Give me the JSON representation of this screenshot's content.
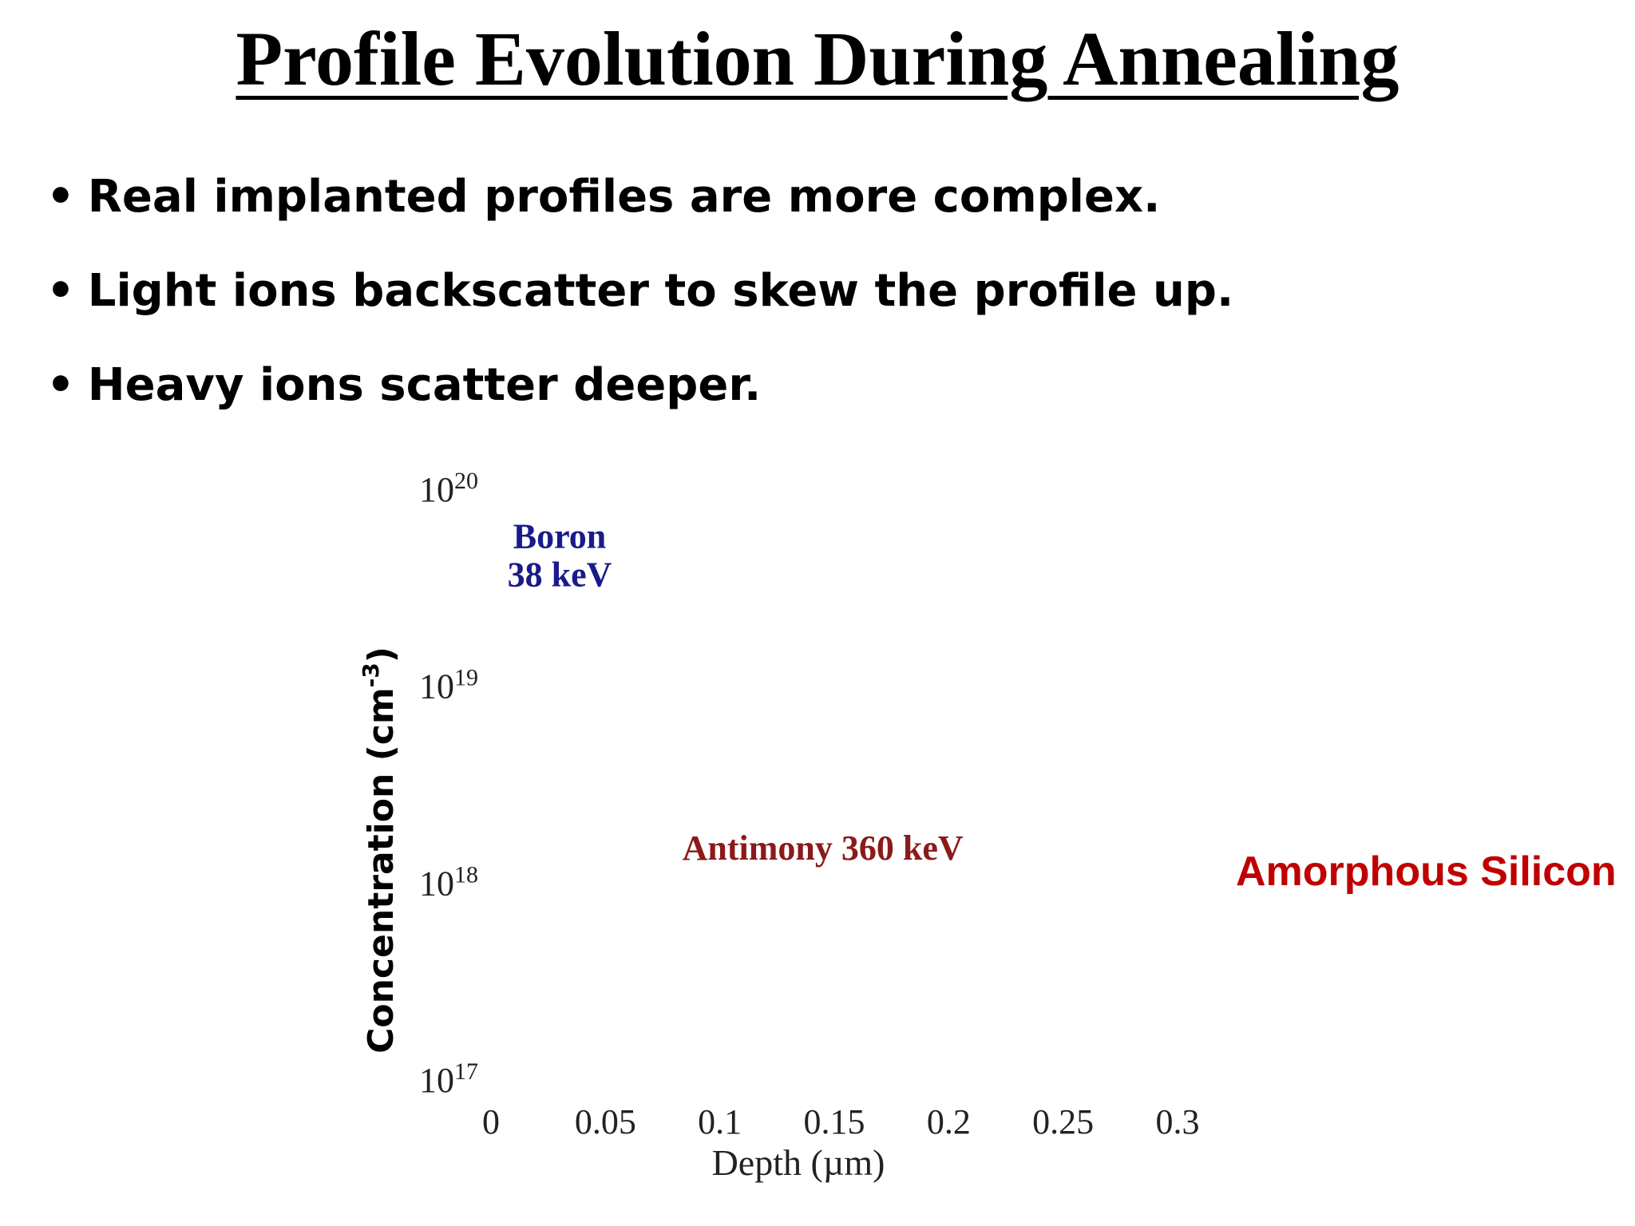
{
  "slide": {
    "title": "Profile Evolution During Annealing",
    "bullets": [
      "Real implanted profiles are more complex.",
      "Light ions backscatter to skew the profile up.",
      "Heavy ions scatter deeper."
    ]
  },
  "chart_data": {
    "type": "line",
    "ylabel": "Concentration (cm",
    "ylabel_sup": "-3",
    "ylabel_suffix": ")",
    "xlabel": "Depth (µm)",
    "xlim": [
      0,
      0.3
    ],
    "x_ticks": [
      "0",
      "0.05",
      "0.1",
      "0.15",
      "0.2",
      "0.25",
      "0.3"
    ],
    "x_tick_values": [
      0,
      0.05,
      0.1,
      0.15,
      0.2,
      0.25,
      0.3
    ],
    "y_scale": "log",
    "ylim": [
      1e+17,
      1e+20
    ],
    "y_ticks": [
      {
        "base": "10",
        "exp": "20",
        "value": 1e+20
      },
      {
        "base": "10",
        "exp": "19",
        "value": 1e+19
      },
      {
        "base": "10",
        "exp": "18",
        "value": 1e+18
      },
      {
        "base": "10",
        "exp": "17",
        "value": 1e+17
      }
    ],
    "series_labels": [
      {
        "lines": [
          "Boron",
          "38 keV"
        ],
        "color": "#1a1a8c",
        "x": 0.03,
        "y": 5e+19
      },
      {
        "lines": [
          "Antimony  360 keV"
        ],
        "color": "#8b1a1a",
        "x": 0.145,
        "y": 1.3e+18
      }
    ],
    "annotation": {
      "text": "Amorphous Silicon",
      "color": "#c00000"
    },
    "grid": false
  }
}
